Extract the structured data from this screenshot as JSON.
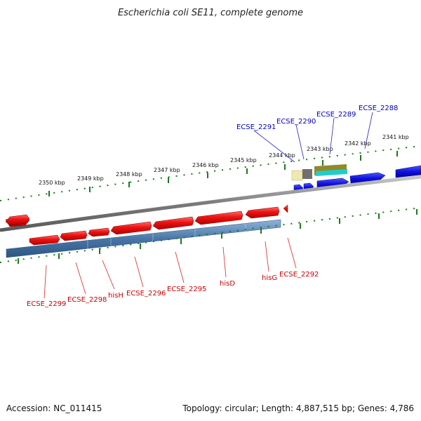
{
  "title": "Escherichia coli SE11, complete genome",
  "footer": {
    "accession": "Accession: NC_011415",
    "summary": "Topology: circular; Length: 4,887,515 bp; Genes: 4,786"
  },
  "kbp_labels": [
    "2350 kbp",
    "2349 kbp",
    "2348 kbp",
    "2347 kbp",
    "2346 kbp",
    "2345 kbp",
    "2344 kbp",
    "2343 kbp",
    "2342 kbp",
    "2341 kbp"
  ],
  "blue_gene_labels": [
    "ECSE_2291",
    "ECSE_2290",
    "ECSE_2289",
    "ECSE_2288"
  ],
  "red_gene_labels": [
    "ECSE_2299",
    "ECSE_2298",
    "hisH",
    "ECSE_2296",
    "ECSE_2295",
    "hisD",
    "hisG",
    "ECSE_2292"
  ],
  "colors": {
    "forward_gene": "#1010dd",
    "reverse_gene": "#ee1111",
    "forward_label": "#0000bb",
    "reverse_label": "#cc0000",
    "reverse_band": "#4a77a8",
    "backbone": "#808080",
    "tick": "#1a7a1a"
  }
}
